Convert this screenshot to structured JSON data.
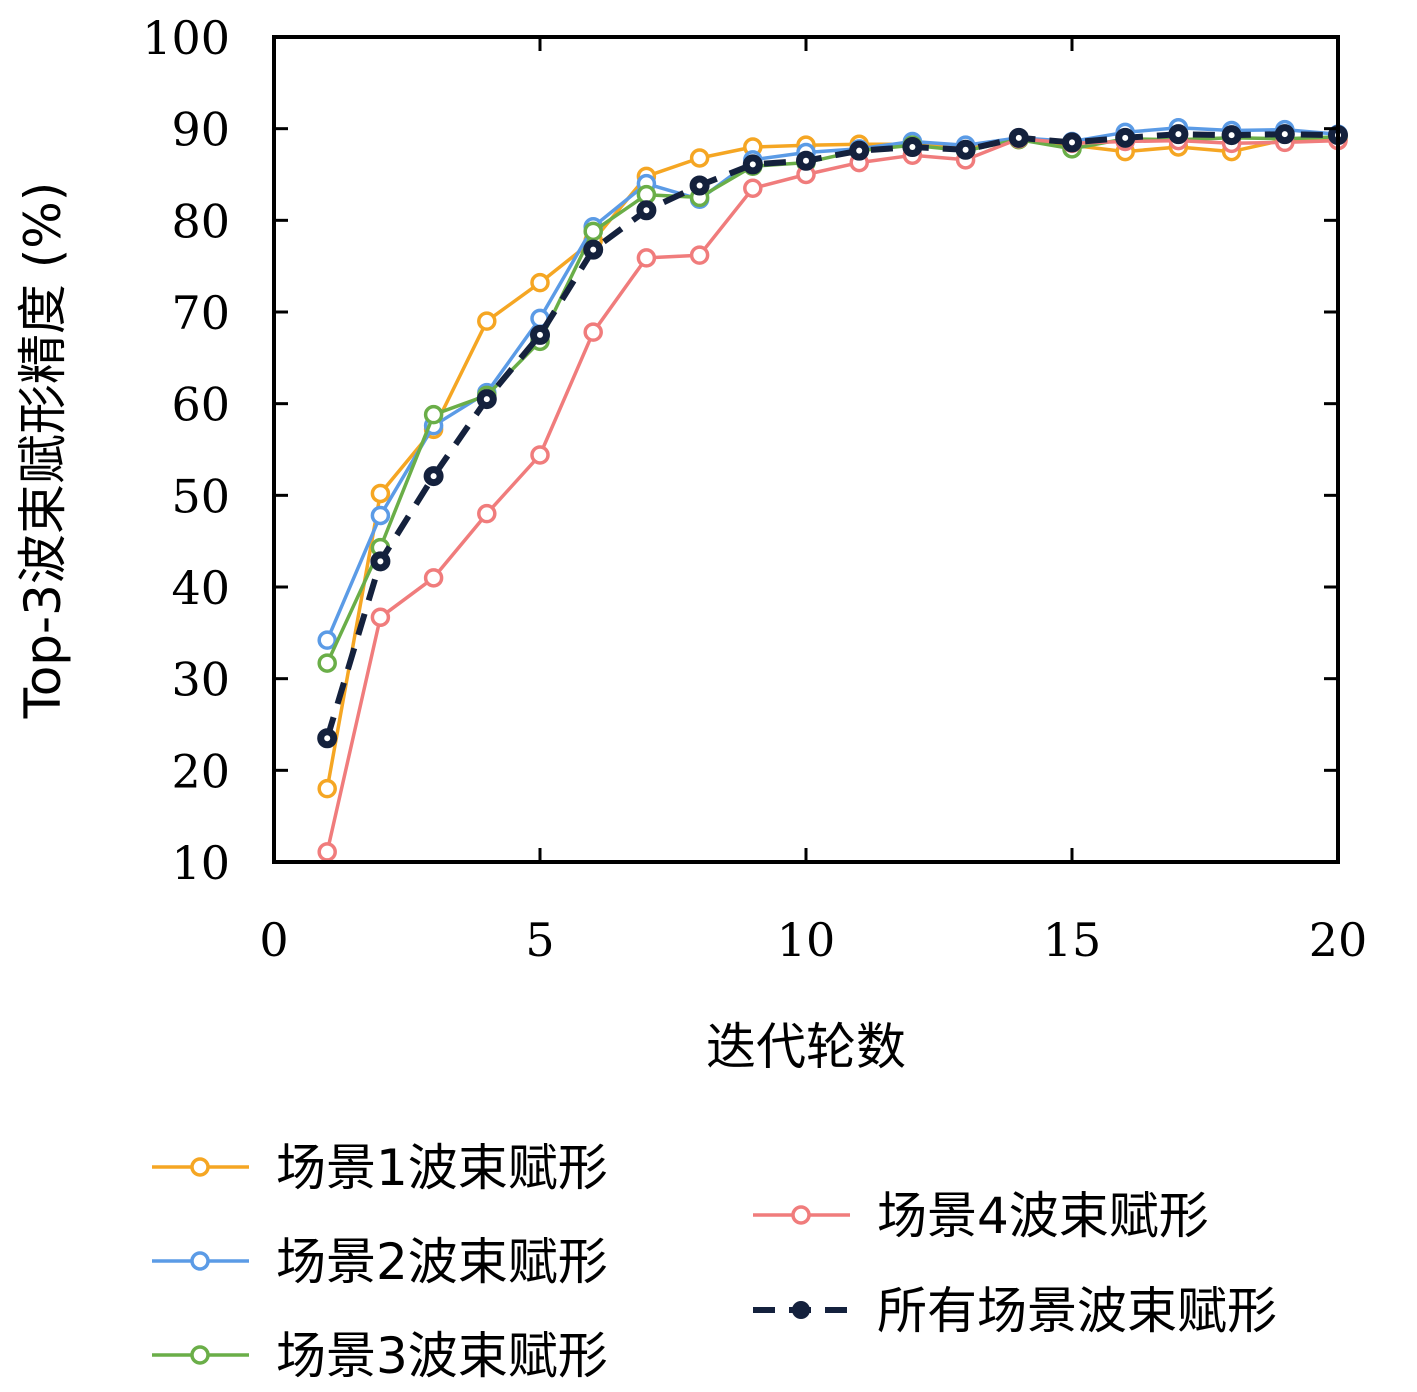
{
  "chart_data": {
    "type": "line",
    "title": "",
    "xlabel": "迭代轮数",
    "ylabel": "Top-3波束赋形精度 (%)",
    "xlim": [
      0,
      20
    ],
    "ylim": [
      10,
      100
    ],
    "xticks": [
      0,
      5,
      10,
      15,
      20
    ],
    "yticks": [
      10,
      20,
      30,
      40,
      50,
      60,
      70,
      80,
      90,
      100
    ],
    "grid": false,
    "legend_position": "bottom",
    "x": [
      1,
      2,
      3,
      4,
      5,
      6,
      7,
      8,
      9,
      10,
      11,
      12,
      13,
      14,
      15,
      16,
      17,
      18,
      19,
      20
    ],
    "series": [
      {
        "name": "场景1波束赋形",
        "color": "#F5A623",
        "style": "solid",
        "marker": "hollow-circle",
        "values": [
          18.0,
          50.2,
          57.2,
          69.0,
          73.2,
          77.8,
          84.8,
          86.8,
          88.0,
          88.2,
          88.3,
          88.3,
          87.8,
          88.8,
          88.2,
          87.5,
          88.0,
          87.5,
          88.8,
          88.8
        ]
      },
      {
        "name": "场景2波束赋形",
        "color": "#5B9BE6",
        "style": "solid",
        "marker": "hollow-circle",
        "values": [
          34.2,
          47.8,
          57.6,
          61.2,
          69.3,
          79.3,
          84.0,
          82.3,
          86.6,
          87.4,
          87.8,
          88.6,
          88.2,
          89.0,
          88.6,
          89.6,
          90.1,
          89.8,
          89.9,
          89.4
        ]
      },
      {
        "name": "场景3波束赋形",
        "color": "#6AAE48",
        "style": "solid",
        "marker": "hollow-circle",
        "values": [
          31.7,
          44.3,
          58.8,
          60.9,
          66.8,
          78.8,
          82.8,
          82.5,
          85.9,
          86.3,
          87.6,
          88.2,
          87.6,
          88.8,
          87.8,
          88.9,
          88.8,
          89.0,
          88.9,
          89.1
        ]
      },
      {
        "name": "场景4波束赋形",
        "color": "#F07C7C",
        "style": "solid",
        "marker": "hollow-circle",
        "values": [
          11.1,
          36.7,
          41.0,
          48.0,
          54.4,
          67.8,
          75.9,
          76.2,
          83.5,
          85.0,
          86.3,
          87.1,
          86.6,
          88.9,
          88.4,
          88.6,
          88.7,
          88.4,
          88.5,
          88.7
        ]
      },
      {
        "name": "所有场景波束赋形",
        "color": "#14213D",
        "style": "dashed",
        "marker": "filled-circle",
        "values": [
          23.5,
          42.8,
          52.1,
          60.5,
          67.5,
          76.8,
          81.1,
          83.8,
          86.1,
          86.5,
          87.6,
          88.0,
          87.7,
          89.0,
          88.5,
          89.0,
          89.4,
          89.3,
          89.4,
          89.3
        ]
      }
    ]
  }
}
